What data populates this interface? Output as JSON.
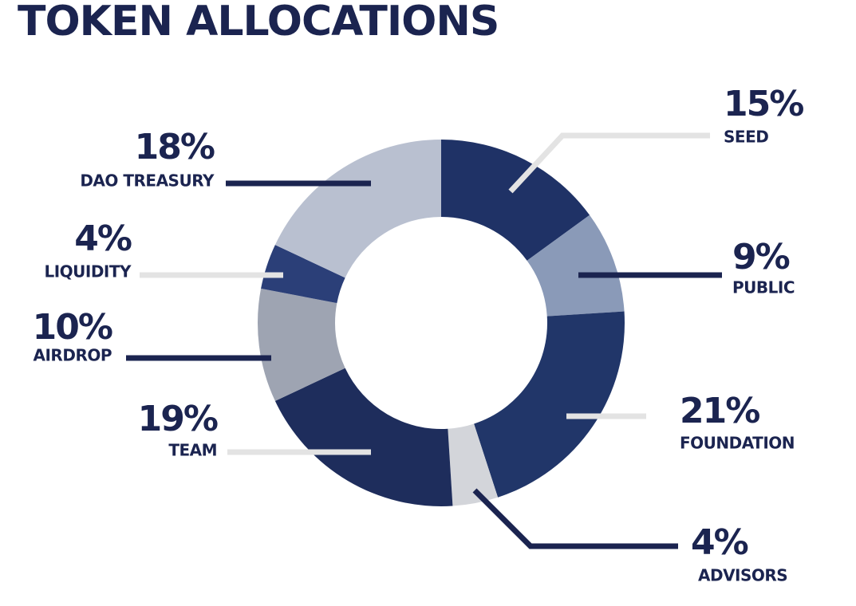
{
  "chart_data": {
    "type": "donut",
    "title": "TOKEN ALLOCATIONS",
    "categories": [
      "SEED",
      "PUBLIC",
      "FOUNDATION",
      "ADVISORS",
      "TEAM",
      "AIRDROP",
      "LIQUIDITY",
      "DAO TREASURY"
    ],
    "values": [
      15,
      9,
      21,
      4,
      19,
      10,
      4,
      18
    ],
    "value_labels": [
      "15%",
      "9%",
      "21%",
      "4%",
      "19%",
      "10%",
      "4%",
      "18%"
    ],
    "colors": [
      "#1f3266",
      "#8a9ab8",
      "#213669",
      "#d3d5da",
      "#1e2d5c",
      "#9ea4b2",
      "#2b3f78",
      "#b9c0d0"
    ]
  }
}
